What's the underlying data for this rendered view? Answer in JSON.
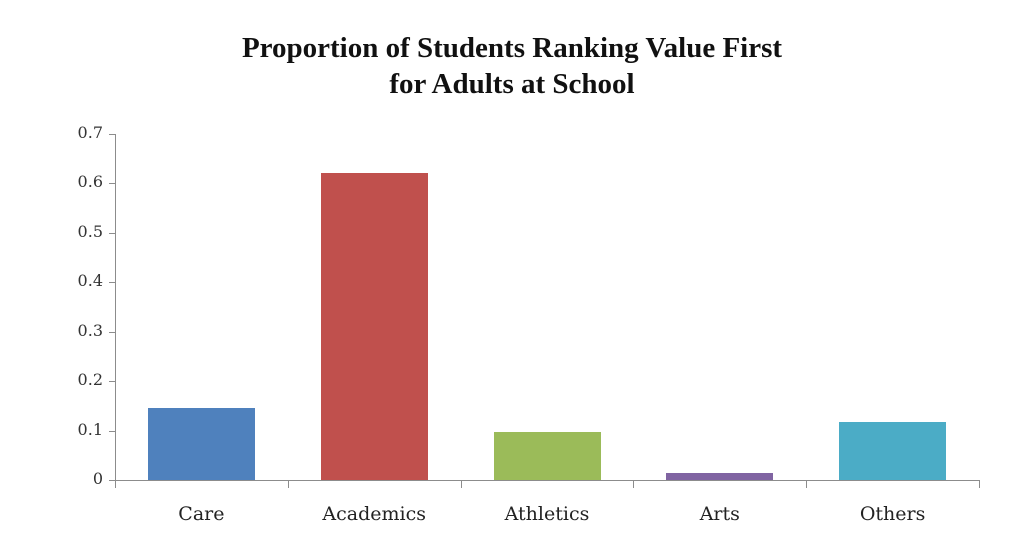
{
  "chart_data": {
    "type": "bar",
    "title": "Proportion of Students Ranking Value First for Adults at School",
    "title_lines": [
      "Proportion of Students Ranking Value First",
      "for Adults at School"
    ],
    "xlabel": "",
    "ylabel": "",
    "categories": [
      "Care",
      "Academics",
      "Athletics",
      "Arts",
      "Others"
    ],
    "values": [
      0.146,
      0.621,
      0.097,
      0.014,
      0.117
    ],
    "colors": [
      "#4f81bd",
      "#c0504d",
      "#9bbb59",
      "#8064a2",
      "#4bacc6"
    ],
    "ylim": [
      0,
      0.7
    ],
    "yticks": [
      "0",
      "0.1",
      "0.2",
      "0.3",
      "0.4",
      "0.5",
      "0.6",
      "0.7"
    ],
    "grid": false,
    "legend": null
  }
}
